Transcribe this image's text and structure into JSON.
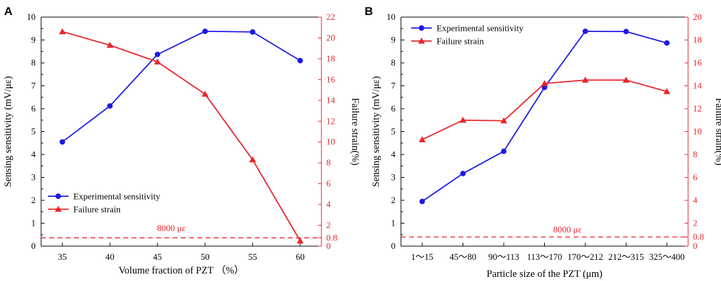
{
  "chart_data": [
    {
      "panel_label": "A",
      "type": "line",
      "categories": [
        "35",
        "40",
        "45",
        "50",
        "55",
        "60"
      ],
      "xlabel": "Volume fraction of PZT （%）",
      "ylabel_left": "Sensing sensitivity (mV/με)",
      "ylabel_right": "Failure strain(%)",
      "ylim_left": [
        0,
        10
      ],
      "ylim_right": [
        0,
        22
      ],
      "yticks_left": [
        "0",
        "1",
        "2",
        "3",
        "4",
        "5",
        "6",
        "7",
        "8",
        "9",
        "10"
      ],
      "yticks_right": [
        {
          "value": 0,
          "label": "0"
        },
        {
          "value": 0.8,
          "label": "0.8"
        },
        {
          "value": 2,
          "label": "2"
        },
        {
          "value": 4,
          "label": "4"
        },
        {
          "value": 6,
          "label": "6"
        },
        {
          "value": 8,
          "label": "8"
        },
        {
          "value": 10,
          "label": "10"
        },
        {
          "value": 12,
          "label": "12"
        },
        {
          "value": 14,
          "label": "14"
        },
        {
          "value": 16,
          "label": "16"
        },
        {
          "value": 18,
          "label": "18"
        },
        {
          "value": 20,
          "label": "20"
        },
        {
          "value": 22,
          "label": "22"
        }
      ],
      "series": [
        {
          "name": "Experimental sensitivity",
          "axis": "left",
          "color": "#1a1ae6",
          "marker": "circle",
          "values": [
            4.55,
            6.12,
            8.37,
            9.38,
            9.35,
            8.1
          ]
        },
        {
          "name": "Failure strain",
          "axis": "right",
          "color": "#e8262b",
          "marker": "triangle",
          "values": [
            20.6,
            19.3,
            17.7,
            14.6,
            8.3,
            0.5
          ]
        }
      ],
      "reference_line": {
        "axis": "right",
        "value": 0.8,
        "label": "8000 με",
        "style": "dashed",
        "color": "#e8262b"
      },
      "legend_position": "bottom-left"
    },
    {
      "panel_label": "B",
      "type": "line",
      "categories": [
        "1～15",
        "45～80",
        "90～113",
        "113～170",
        "170～212",
        "212～315",
        "325～400"
      ],
      "xlabel": "Particle size of the PZT (μm)",
      "ylabel_left": "Sensing sensitivity (mV/με)",
      "ylabel_right": "Failure strain(%)",
      "ylim_left": [
        0,
        10
      ],
      "ylim_right": [
        0,
        20
      ],
      "yticks_left": [
        "0",
        "1",
        "2",
        "3",
        "4",
        "5",
        "6",
        "7",
        "8",
        "9",
        "10"
      ],
      "yticks_right": [
        {
          "value": 0,
          "label": "0"
        },
        {
          "value": 0.8,
          "label": "0.8"
        },
        {
          "value": 2,
          "label": "2"
        },
        {
          "value": 4,
          "label": "4"
        },
        {
          "value": 6,
          "label": "6"
        },
        {
          "value": 8,
          "label": "8"
        },
        {
          "value": 10,
          "label": "10"
        },
        {
          "value": 12,
          "label": "12"
        },
        {
          "value": 14,
          "label": "14"
        },
        {
          "value": 16,
          "label": "16"
        },
        {
          "value": 18,
          "label": "18"
        },
        {
          "value": 20,
          "label": "20"
        }
      ],
      "series": [
        {
          "name": "Experimental sensitivity",
          "axis": "left",
          "color": "#1a1ae6",
          "marker": "circle",
          "values": [
            1.95,
            3.17,
            4.14,
            6.93,
            9.38,
            9.37,
            8.87
          ]
        },
        {
          "name": "Failure strain",
          "axis": "right",
          "color": "#e8262b",
          "marker": "triangle",
          "values": [
            9.3,
            11.0,
            10.95,
            14.2,
            14.5,
            14.5,
            13.5
          ]
        }
      ],
      "reference_line": {
        "axis": "right",
        "value": 0.8,
        "label": "8000 με",
        "style": "dashed",
        "color": "#e8262b"
      },
      "legend_position": "top-left"
    }
  ]
}
